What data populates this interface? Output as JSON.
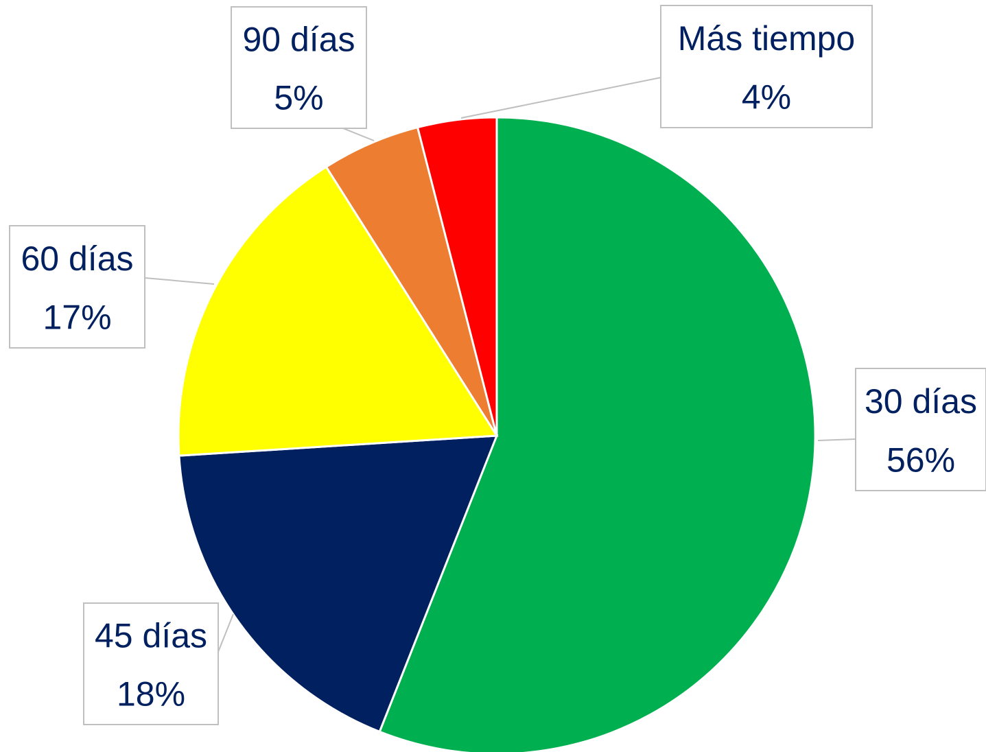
{
  "chart_data": {
    "type": "pie",
    "categories": [
      "30 días",
      "45 días",
      "60 días",
      "90 días",
      "Más tiempo"
    ],
    "values": [
      56,
      18,
      17,
      5,
      4
    ],
    "value_labels": [
      "56%",
      "18%",
      "17%",
      "5%",
      "4%"
    ],
    "colors": [
      "#00b050",
      "#002060",
      "#ffff00",
      "#ed7d31",
      "#ff0000"
    ]
  }
}
